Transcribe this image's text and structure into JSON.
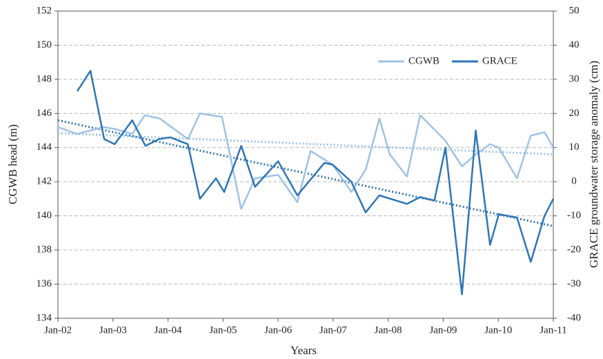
{
  "chart_data": {
    "type": "line",
    "x_label": "Years",
    "y_label": "CGWB head (m)",
    "y2_label": "GRACE groundwater storage anomaly (cm)",
    "xlim": [
      2002,
      2011
    ],
    "xticks": [
      {
        "value": 2002,
        "label": "Jan-02"
      },
      {
        "value": 2003,
        "label": "Jan-03"
      },
      {
        "value": 2004,
        "label": "Jan-04"
      },
      {
        "value": 2005,
        "label": "Jan-05"
      },
      {
        "value": 2006,
        "label": "Jan-06"
      },
      {
        "value": 2007,
        "label": "Jan-07"
      },
      {
        "value": 2008,
        "label": "Jan-08"
      },
      {
        "value": 2009,
        "label": "Jan-09"
      },
      {
        "value": 2010,
        "label": "Jan-10"
      },
      {
        "value": 2011,
        "label": "Jan-11"
      }
    ],
    "ylim": [
      134,
      152
    ],
    "yticks": [
      134,
      136,
      138,
      140,
      142,
      144,
      146,
      148,
      150,
      152
    ],
    "y2lim": [
      -40,
      50
    ],
    "y2ticks": [
      -40,
      -30,
      -20,
      -10,
      0,
      10,
      20,
      30,
      40,
      50
    ],
    "grid": true,
    "legend": "top-right",
    "series": [
      {
        "name": "CGWB",
        "color": "#9dc3e6",
        "axis": "y",
        "x": [
          2002.0,
          2002.34,
          2002.83,
          2003.02,
          2003.35,
          2003.58,
          2003.85,
          2004.36,
          2004.58,
          2004.98,
          2005.33,
          2005.58,
          2006.0,
          2006.35,
          2006.59,
          2006.84,
          2006.99,
          2007.33,
          2007.59,
          2007.84,
          2008.03,
          2008.34,
          2008.58,
          2009.04,
          2009.34,
          2009.59,
          2009.85,
          2010.01,
          2010.34,
          2010.59,
          2010.84,
          2011.0
        ],
        "values": [
          145.2,
          144.8,
          145.2,
          145.1,
          144.8,
          145.9,
          145.7,
          144.5,
          146.0,
          145.8,
          140.4,
          142.2,
          142.4,
          140.8,
          143.8,
          143.3,
          143.0,
          141.4,
          142.7,
          145.7,
          143.6,
          142.3,
          145.9,
          144.4,
          142.9,
          143.6,
          144.2,
          144.0,
          142.2,
          144.7,
          144.9,
          144.0
        ],
        "trend": [
          144.85,
          143.6
        ]
      },
      {
        "name": "GRACE",
        "color": "#2e75b6",
        "axis": "y2",
        "x": [
          2002.35,
          2002.59,
          2002.84,
          2003.03,
          2003.35,
          2003.59,
          2003.84,
          2004.04,
          2004.36,
          2004.58,
          2004.87,
          2005.02,
          2005.33,
          2005.58,
          2006.0,
          2006.35,
          2006.84,
          2006.99,
          2007.33,
          2007.59,
          2007.84,
          2008.34,
          2008.58,
          2008.84,
          2009.04,
          2009.34,
          2009.59,
          2009.85,
          2010.01,
          2010.34,
          2010.59,
          2010.84,
          2011.0
        ],
        "values": [
          26.5,
          32.5,
          12.5,
          11,
          18,
          10.5,
          12.5,
          13,
          11,
          -5,
          1,
          -3,
          10.5,
          -1.5,
          6,
          -4,
          5.5,
          5,
          0,
          -9,
          -4,
          -6.5,
          -4.5,
          -5.5,
          10,
          -33,
          15,
          -18.5,
          -9.5,
          -10.5,
          -23.5,
          -10,
          -5
        ],
        "trend": [
          18,
          -13
        ]
      }
    ]
  }
}
